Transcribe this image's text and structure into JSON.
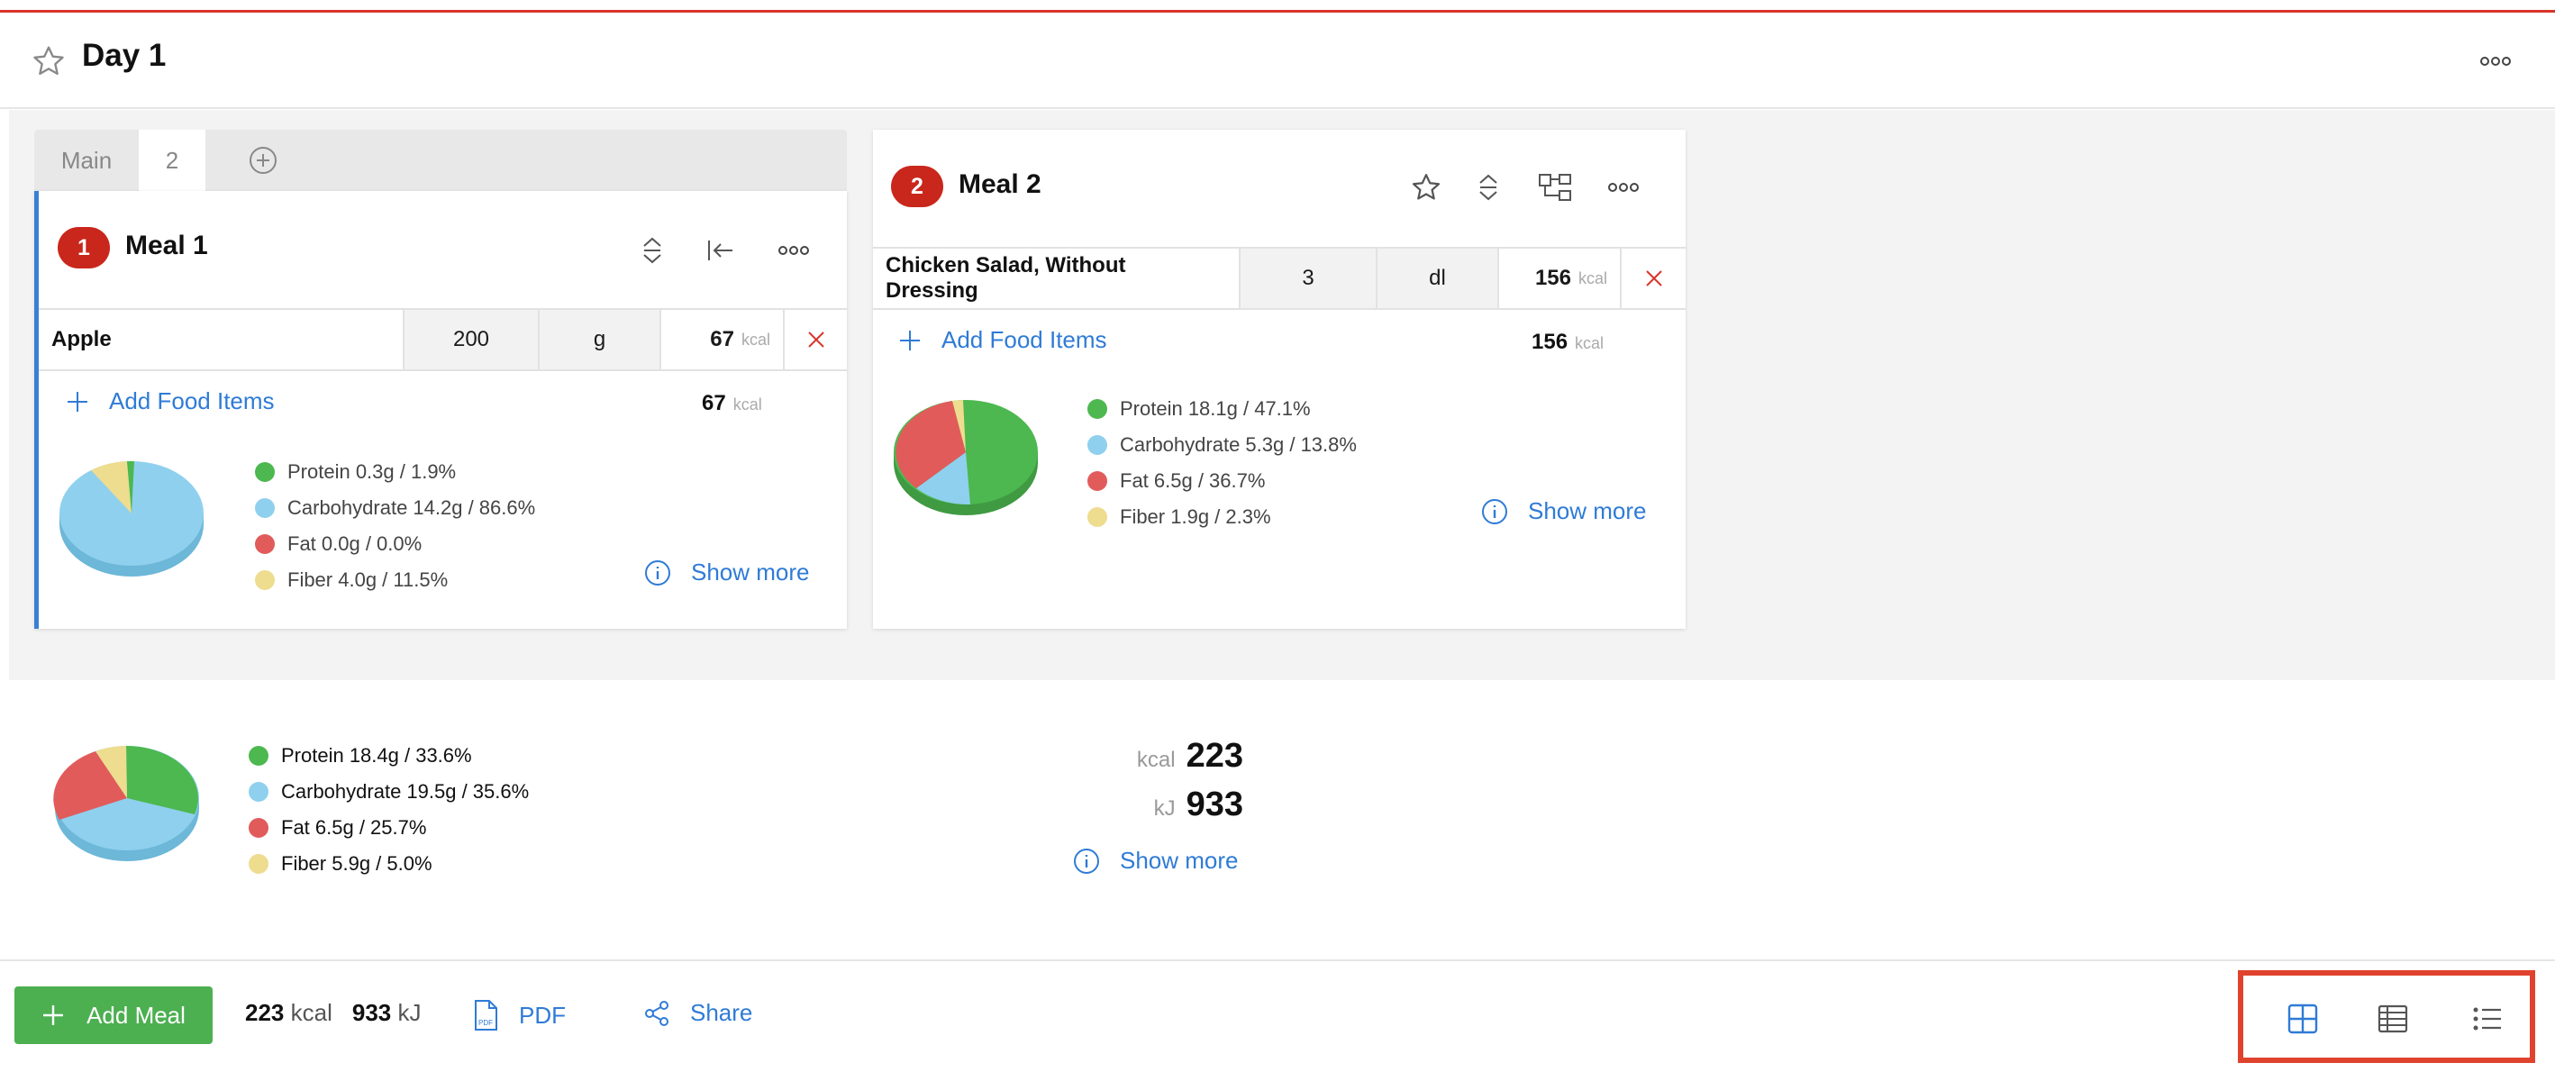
{
  "header": {
    "title": "Day 1"
  },
  "tabs": [
    {
      "label": "Main"
    },
    {
      "label": "2"
    }
  ],
  "meals": [
    {
      "number": "1",
      "title": "Meal 1",
      "food": {
        "name": "Apple",
        "amount": "200",
        "unit": "g",
        "kcal": "67",
        "kcal_unit": "kcal"
      },
      "add_label": "Add Food Items",
      "total_kcal": "67",
      "total_kcal_unit": "kcal",
      "macros": [
        {
          "label": "Protein 0.3g / 1.9%",
          "color": "#4cb84f"
        },
        {
          "label": "Carbohydrate 14.2g / 86.6%",
          "color": "#8fd0ee"
        },
        {
          "label": "Fat 0.0g / 0.0%",
          "color": "#e15b5b"
        },
        {
          "label": "Fiber 4.0g / 11.5%",
          "color": "#eedc8f"
        }
      ],
      "show_more": "Show more"
    },
    {
      "number": "2",
      "title": "Meal 2",
      "food": {
        "name": "Chicken Salad, Without Dressing",
        "amount": "3",
        "unit": "dl",
        "kcal": "156",
        "kcal_unit": "kcal"
      },
      "add_label": "Add Food Items",
      "total_kcal": "156",
      "total_kcal_unit": "kcal",
      "macros": [
        {
          "label": "Protein 18.1g / 47.1%",
          "color": "#4cb84f"
        },
        {
          "label": "Carbohydrate 5.3g / 13.8%",
          "color": "#8fd0ee"
        },
        {
          "label": "Fat 6.5g / 36.7%",
          "color": "#e15b5b"
        },
        {
          "label": "Fiber 1.9g / 2.3%",
          "color": "#eedc8f"
        }
      ],
      "show_more": "Show more"
    }
  ],
  "summary": {
    "macros": [
      {
        "label": "Protein 18.4g / 33.6%",
        "color": "#4cb84f"
      },
      {
        "label": "Carbohydrate 19.5g / 35.6%",
        "color": "#8fd0ee"
      },
      {
        "label": "Fat 6.5g / 25.7%",
        "color": "#e15b5b"
      },
      {
        "label": "Fiber 5.9g / 5.0%",
        "color": "#eedc8f"
      }
    ],
    "kcal_unit": "kcal",
    "kcal": "223",
    "kj_unit": "kJ",
    "kj": "933",
    "show_more": "Show more"
  },
  "bottombar": {
    "add_meal": "Add Meal",
    "total_kcal": "223",
    "total_kcal_unit": "kcal",
    "total_kj": "933",
    "total_kj_unit": "kJ",
    "pdf": "PDF",
    "share": "Share"
  },
  "colors": {
    "accent": "#2f7bd6",
    "badge": "#c9261c",
    "add_meal": "#4caf50",
    "highlight": "#e0432d"
  }
}
